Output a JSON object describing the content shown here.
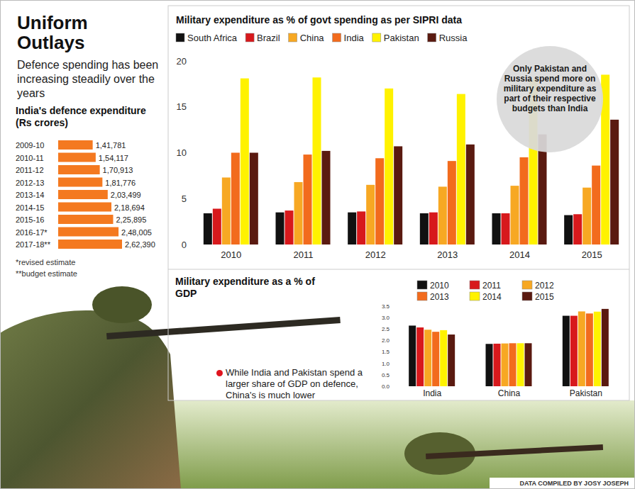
{
  "header": {
    "title": "Uniform Outlays",
    "subtitle": "Defence spending has been increasing steadily over the years"
  },
  "chart_data": [
    {
      "type": "bar",
      "orientation": "horizontal",
      "title": "India's defence expenditure (Rs crores)",
      "categories": [
        "2009-10",
        "2010-11",
        "2011-12",
        "2012-13",
        "2013-14",
        "2014-15",
        "2015-16",
        "2016-17*",
        "2017-18**"
      ],
      "values": [
        141781,
        154117,
        170913,
        181776,
        203499,
        218694,
        225895,
        248005,
        262390
      ],
      "value_labels": [
        "1,41,781",
        "1,54,117",
        "1,70,913",
        "1,81,776",
        "2,03,499",
        "2,18,694",
        "2,25,895",
        "2,48,005",
        "2,62,390"
      ],
      "data_labels": true,
      "tick_labels": "y",
      "xlim": [
        0,
        262390
      ],
      "color": "#f47920",
      "annotations": [
        "*revised estimate",
        "**budget estimate"
      ]
    },
    {
      "type": "bar",
      "title": "Military expenditure as % of govt spending as per SIPRI data",
      "categories": [
        "2010",
        "2011",
        "2012",
        "2013",
        "2014",
        "2015"
      ],
      "series": [
        {
          "name": "South Africa",
          "color": "#111111",
          "values": [
            3.4,
            3.5,
            3.5,
            3.4,
            3.4,
            3.2
          ]
        },
        {
          "name": "Brazil",
          "color": "#d7191c",
          "values": [
            3.9,
            3.7,
            3.6,
            3.5,
            3.4,
            3.3
          ]
        },
        {
          "name": "China",
          "color": "#f7a823",
          "values": [
            7.3,
            6.8,
            6.5,
            6.3,
            6.4,
            6.2
          ]
        },
        {
          "name": "India",
          "color": "#f26b1d",
          "values": [
            10.0,
            9.8,
            9.4,
            9.1,
            9.5,
            8.6
          ]
        },
        {
          "name": "Pakistan",
          "color": "#fff200",
          "values": [
            18.1,
            18.2,
            17.0,
            16.4,
            18.0,
            18.5
          ]
        },
        {
          "name": "Russia",
          "color": "#5a1a10",
          "values": [
            10.0,
            10.2,
            10.7,
            10.9,
            12.0,
            13.6
          ]
        }
      ],
      "ylim": [
        0,
        20
      ],
      "yticks": [
        0,
        5,
        10,
        15,
        20
      ],
      "legend": "top",
      "annotations": [
        "Only Pakistan and Russia spend more on military expenditure as part of their respective budgets than India"
      ]
    },
    {
      "type": "bar",
      "title": "Military expenditure as a % of GDP",
      "categories": [
        "India",
        "China",
        "Pakistan"
      ],
      "series": [
        {
          "name": "2010",
          "color": "#111111",
          "values": [
            2.65,
            1.85,
            3.08
          ]
        },
        {
          "name": "2011",
          "color": "#d7191c",
          "values": [
            2.57,
            1.86,
            3.08
          ]
        },
        {
          "name": "2012",
          "color": "#f7a823",
          "values": [
            2.47,
            1.87,
            3.27
          ]
        },
        {
          "name": "2013",
          "color": "#f26b1d",
          "values": [
            2.38,
            1.88,
            3.18
          ]
        },
        {
          "name": "2014",
          "color": "#fff200",
          "values": [
            2.45,
            1.88,
            3.26
          ]
        },
        {
          "name": "2015",
          "color": "#5a1a10",
          "values": [
            2.26,
            1.88,
            3.38
          ]
        }
      ],
      "ylim": [
        0,
        3.5
      ],
      "yticks": [
        {
          "value": 0,
          "label": "0.0"
        },
        0.5,
        {
          "value": 1,
          "label": "1.0"
        },
        1.5,
        {
          "value": 2,
          "label": "2.0"
        },
        2.5,
        {
          "value": 3,
          "label": "3.0"
        },
        3.5
      ],
      "legend": "top-right",
      "annotations": [
        "While India and Pakistan spend a larger share of GDP on defence, China's is much lower"
      ]
    }
  ],
  "footer": {
    "credit": "DATA COMPILED BY JOSY JOSEPH"
  }
}
